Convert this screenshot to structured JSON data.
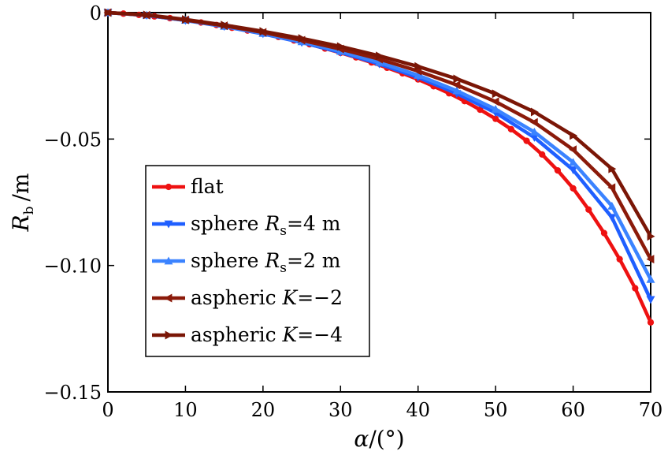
{
  "chart_data": {
    "type": "line",
    "xlabel_symbol": "α",
    "xlabel_unit": "/(°)",
    "ylabel_symbol": "R",
    "ylabel_subscript": "b",
    "ylabel_unit": "/m",
    "xlim": [
      0,
      70
    ],
    "ylim": [
      -0.15,
      0
    ],
    "x_ticks": [
      0,
      10,
      20,
      30,
      40,
      50,
      60,
      70
    ],
    "x_tick_labels": [
      "0",
      "10",
      "20",
      "30",
      "40",
      "50",
      "60",
      "70"
    ],
    "y_ticks": [
      0,
      -0.05,
      -0.1,
      -0.15
    ],
    "y_tick_labels": [
      "0",
      "−0.05",
      "−0.10",
      "−0.15"
    ],
    "grid": false,
    "legend_position": "center-left",
    "series": [
      {
        "name": "flat",
        "legend_parts": [
          "flat"
        ],
        "color": "#ee1111",
        "marker": "circle",
        "x": [
          0,
          2,
          4,
          6,
          8,
          10,
          12,
          14,
          16,
          18,
          20,
          22,
          24,
          26,
          28,
          30,
          32,
          34,
          36,
          38,
          40,
          42,
          44,
          46,
          48,
          50,
          52,
          54,
          56,
          58,
          60,
          62,
          64,
          66,
          68,
          70
        ],
        "y": [
          0,
          -0.0004,
          -0.0009,
          -0.0015,
          -0.0022,
          -0.003,
          -0.0039,
          -0.0049,
          -0.006,
          -0.0071,
          -0.0083,
          -0.0096,
          -0.011,
          -0.0125,
          -0.0142,
          -0.0159,
          -0.0177,
          -0.0197,
          -0.0218,
          -0.024,
          -0.0264,
          -0.0291,
          -0.0319,
          -0.035,
          -0.0384,
          -0.042,
          -0.0461,
          -0.0507,
          -0.0561,
          -0.0624,
          -0.0695,
          -0.0779,
          -0.0872,
          -0.0975,
          -0.109,
          -0.1225
        ]
      },
      {
        "name": "sphere Rs=4 m",
        "legend_parts": [
          "sphere ",
          "R",
          "s",
          "=4 m"
        ],
        "color": "#1f5fff",
        "marker": "triangle-down",
        "x": [
          0,
          5,
          10,
          15,
          20,
          25,
          30,
          35,
          40,
          45,
          50,
          55,
          60,
          65,
          70
        ],
        "y": [
          0,
          -0.0011,
          -0.0031,
          -0.0055,
          -0.0084,
          -0.0118,
          -0.0157,
          -0.0203,
          -0.0256,
          -0.032,
          -0.0396,
          -0.0494,
          -0.0622,
          -0.081,
          -0.1135
        ]
      },
      {
        "name": "sphere Rs=2 m",
        "legend_parts": [
          "sphere ",
          "R",
          "s",
          "=2 m"
        ],
        "color": "#3b83ff",
        "marker": "triangle-up",
        "x": [
          0,
          5,
          10,
          15,
          20,
          25,
          30,
          35,
          40,
          45,
          50,
          55,
          60,
          65,
          70
        ],
        "y": [
          0,
          -0.001,
          -0.003,
          -0.0054,
          -0.0082,
          -0.0115,
          -0.0153,
          -0.0197,
          -0.0248,
          -0.0309,
          -0.0382,
          -0.0472,
          -0.0592,
          -0.0765,
          -0.1055
        ]
      },
      {
        "name": "aspheric K=−2",
        "legend_parts": [
          "aspheric ",
          "K",
          "",
          "=−2"
        ],
        "color": "#8b1a0a",
        "marker": "triangle-left",
        "x": [
          0,
          5,
          10,
          15,
          20,
          25,
          30,
          35,
          40,
          45,
          50,
          55,
          60,
          65,
          70
        ],
        "y": [
          0,
          -0.001,
          -0.0029,
          -0.0052,
          -0.0078,
          -0.0109,
          -0.0144,
          -0.0184,
          -0.0231,
          -0.0286,
          -0.0352,
          -0.0434,
          -0.0542,
          -0.0692,
          -0.0975
        ]
      },
      {
        "name": "aspheric K=−4",
        "legend_parts": [
          "aspheric ",
          "K",
          "",
          "=−4"
        ],
        "color": "#7a1606",
        "marker": "triangle-right",
        "x": [
          0,
          5,
          10,
          15,
          20,
          25,
          30,
          35,
          40,
          45,
          50,
          55,
          60,
          65,
          70
        ],
        "y": [
          0,
          -0.0009,
          -0.0027,
          -0.0049,
          -0.0074,
          -0.0102,
          -0.0134,
          -0.0171,
          -0.0213,
          -0.0262,
          -0.0321,
          -0.0393,
          -0.0486,
          -0.0618,
          -0.0885
        ]
      }
    ]
  }
}
